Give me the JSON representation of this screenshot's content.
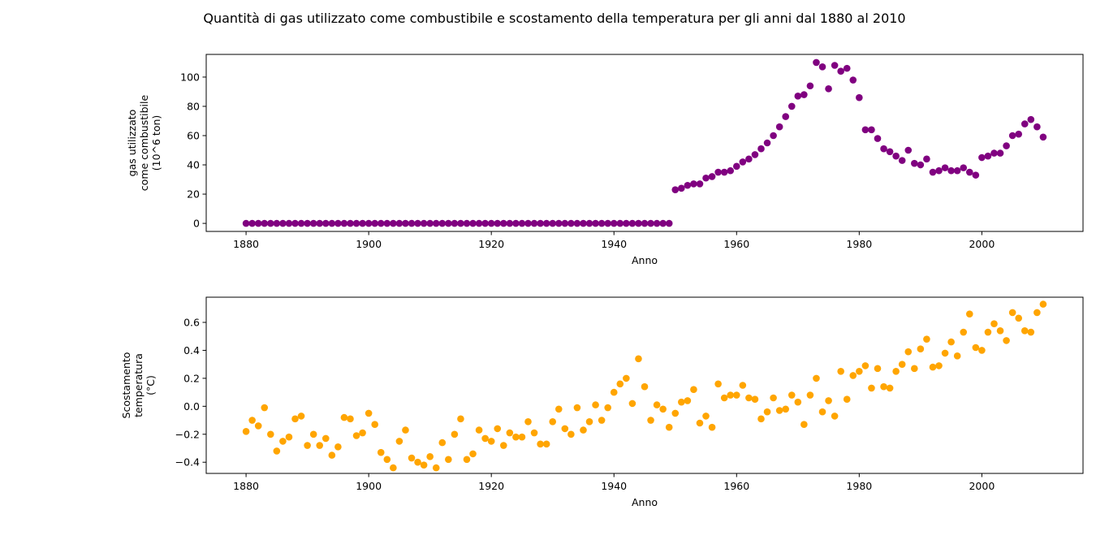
{
  "figure": {
    "title": "Quantità di gas utilizzato come combustibile e scostamento della temperatura per gli anni dal 1880 al 2010"
  },
  "chart_data": [
    {
      "type": "scatter",
      "color": "#800080",
      "xlabel": "Anno",
      "ylabel": [
        "gas utilizzato",
        "come combustibile",
        "(10^6 ton)"
      ],
      "xlim": [
        1873.5,
        2016.5
      ],
      "ylim": [
        -5.5,
        115.5
      ],
      "xticks": [
        1880,
        1900,
        1920,
        1940,
        1960,
        1980,
        2000
      ],
      "yticks": [
        0,
        20,
        40,
        60,
        80,
        100
      ],
      "ytick_labels": [
        "0",
        "20",
        "40",
        "60",
        "80",
        "100"
      ],
      "grid": false,
      "x": [
        1880,
        1881,
        1882,
        1883,
        1884,
        1885,
        1886,
        1887,
        1888,
        1889,
        1890,
        1891,
        1892,
        1893,
        1894,
        1895,
        1896,
        1897,
        1898,
        1899,
        1900,
        1901,
        1902,
        1903,
        1904,
        1905,
        1906,
        1907,
        1908,
        1909,
        1910,
        1911,
        1912,
        1913,
        1914,
        1915,
        1916,
        1917,
        1918,
        1919,
        1920,
        1921,
        1922,
        1923,
        1924,
        1925,
        1926,
        1927,
        1928,
        1929,
        1930,
        1931,
        1932,
        1933,
        1934,
        1935,
        1936,
        1937,
        1938,
        1939,
        1940,
        1941,
        1942,
        1943,
        1944,
        1945,
        1946,
        1947,
        1948,
        1949,
        1950,
        1951,
        1952,
        1953,
        1954,
        1955,
        1956,
        1957,
        1958,
        1959,
        1960,
        1961,
        1962,
        1963,
        1964,
        1965,
        1966,
        1967,
        1968,
        1969,
        1970,
        1971,
        1972,
        1973,
        1974,
        1975,
        1976,
        1977,
        1978,
        1979,
        1980,
        1981,
        1982,
        1983,
        1984,
        1985,
        1986,
        1987,
        1988,
        1989,
        1990,
        1991,
        1992,
        1993,
        1994,
        1995,
        1996,
        1997,
        1998,
        1999,
        2000,
        2001,
        2002,
        2003,
        2004,
        2005,
        2006,
        2007,
        2008,
        2009,
        2010
      ],
      "y": [
        0,
        0,
        0,
        0,
        0,
        0,
        0,
        0,
        0,
        0,
        0,
        0,
        0,
        0,
        0,
        0,
        0,
        0,
        0,
        0,
        0,
        0,
        0,
        0,
        0,
        0,
        0,
        0,
        0,
        0,
        0,
        0,
        0,
        0,
        0,
        0,
        0,
        0,
        0,
        0,
        0,
        0,
        0,
        0,
        0,
        0,
        0,
        0,
        0,
        0,
        0,
        0,
        0,
        0,
        0,
        0,
        0,
        0,
        0,
        0,
        0,
        0,
        0,
        0,
        0,
        0,
        0,
        0,
        0,
        0,
        23,
        24,
        26,
        27,
        27,
        31,
        32,
        35,
        35,
        36,
        39,
        42,
        44,
        47,
        51,
        55,
        60,
        66,
        73,
        80,
        87,
        88,
        94,
        110,
        107,
        92,
        108,
        104,
        106,
        98,
        86,
        64,
        64,
        58,
        51,
        49,
        46,
        43,
        50,
        41,
        40,
        44,
        35,
        36,
        38,
        36,
        36,
        38,
        35,
        33,
        45,
        46,
        48,
        48,
        53,
        60,
        61,
        68,
        71,
        66,
        59
      ]
    },
    {
      "type": "scatter",
      "color": "#FFA500",
      "xlabel": "Anno",
      "ylabel": [
        "Scostamento",
        "temperatura",
        "(°C)"
      ],
      "xlim": [
        1873.5,
        2016.5
      ],
      "ylim": [
        -0.48,
        0.78
      ],
      "xticks": [
        1880,
        1900,
        1920,
        1940,
        1960,
        1980,
        2000
      ],
      "yticks": [
        -0.4,
        -0.2,
        0.0,
        0.2,
        0.4,
        0.6
      ],
      "ytick_labels": [
        "−0.4",
        "−0.2",
        "0.0",
        "0.2",
        "0.4",
        "0.6"
      ],
      "grid": false,
      "x": [
        1880,
        1881,
        1882,
        1883,
        1884,
        1885,
        1886,
        1887,
        1888,
        1889,
        1890,
        1891,
        1892,
        1893,
        1894,
        1895,
        1896,
        1897,
        1898,
        1899,
        1900,
        1901,
        1902,
        1903,
        1904,
        1905,
        1906,
        1907,
        1908,
        1909,
        1910,
        1911,
        1912,
        1913,
        1914,
        1915,
        1916,
        1917,
        1918,
        1919,
        1920,
        1921,
        1922,
        1923,
        1924,
        1925,
        1926,
        1927,
        1928,
        1929,
        1930,
        1931,
        1932,
        1933,
        1934,
        1935,
        1936,
        1937,
        1938,
        1939,
        1940,
        1941,
        1942,
        1943,
        1944,
        1945,
        1946,
        1947,
        1948,
        1949,
        1950,
        1951,
        1952,
        1953,
        1954,
        1955,
        1956,
        1957,
        1958,
        1959,
        1960,
        1961,
        1962,
        1963,
        1964,
        1965,
        1966,
        1967,
        1968,
        1969,
        1970,
        1971,
        1972,
        1973,
        1974,
        1975,
        1976,
        1977,
        1978,
        1979,
        1980,
        1981,
        1982,
        1983,
        1984,
        1985,
        1986,
        1987,
        1988,
        1989,
        1990,
        1991,
        1992,
        1993,
        1994,
        1995,
        1996,
        1997,
        1998,
        1999,
        2000,
        2001,
        2002,
        2003,
        2004,
        2005,
        2006,
        2007,
        2008,
        2009,
        2010
      ],
      "y": [
        -0.18,
        -0.1,
        -0.14,
        -0.01,
        -0.2,
        -0.32,
        -0.25,
        -0.22,
        -0.09,
        -0.07,
        -0.28,
        -0.2,
        -0.28,
        -0.23,
        -0.35,
        -0.29,
        -0.08,
        -0.09,
        -0.21,
        -0.19,
        -0.05,
        -0.13,
        -0.33,
        -0.38,
        -0.44,
        -0.25,
        -0.17,
        -0.37,
        -0.4,
        -0.42,
        -0.36,
        -0.44,
        -0.26,
        -0.38,
        -0.2,
        -0.09,
        -0.38,
        -0.34,
        -0.17,
        -0.23,
        -0.25,
        -0.16,
        -0.28,
        -0.19,
        -0.22,
        -0.22,
        -0.11,
        -0.19,
        -0.27,
        -0.27,
        -0.11,
        -0.02,
        -0.16,
        -0.2,
        -0.01,
        -0.17,
        -0.11,
        0.01,
        -0.1,
        -0.01,
        0.1,
        0.16,
        0.2,
        0.02,
        0.34,
        0.14,
        -0.1,
        0.01,
        -0.02,
        -0.15,
        -0.05,
        0.03,
        0.04,
        0.12,
        -0.12,
        -0.07,
        -0.15,
        0.16,
        0.06,
        0.08,
        0.08,
        0.15,
        0.06,
        0.05,
        -0.09,
        -0.04,
        0.06,
        -0.03,
        -0.02,
        0.08,
        0.03,
        -0.13,
        0.08,
        0.2,
        -0.04,
        0.04,
        -0.07,
        0.25,
        0.05,
        0.22,
        0.25,
        0.29,
        0.13,
        0.27,
        0.14,
        0.13,
        0.25,
        0.3,
        0.39,
        0.27,
        0.41,
        0.48,
        0.28,
        0.29,
        0.38,
        0.46,
        0.36,
        0.53,
        0.66,
        0.42,
        0.4,
        0.53,
        0.59,
        0.54,
        0.47,
        0.67,
        0.63,
        0.54,
        0.53,
        0.67,
        0.73
      ]
    }
  ]
}
